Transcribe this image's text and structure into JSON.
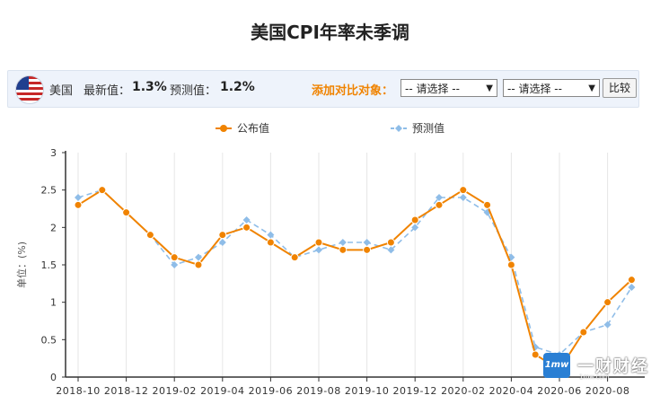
{
  "page": {
    "title": "美国CPI年率未季调"
  },
  "info_bar": {
    "flag_icon": "us-flag-icon",
    "country": "美国",
    "latest_label": "最新值：",
    "latest_value": "1.3%",
    "forecast_label": "预测值：",
    "forecast_value": "1.2%",
    "compare_label": "添加对比对象：",
    "select1": "-- 请选择 --",
    "select2": "-- 请选择 --",
    "compare_button": "比较"
  },
  "watermark": {
    "logo_text": "1mw",
    "text": "一财财经",
    "url": "1mw.com"
  },
  "chart_data": {
    "type": "line",
    "title": "",
    "xlabel": "",
    "ylabel": "单位：(%)",
    "ylim": [
      0,
      3
    ],
    "yticks": [
      "0",
      "0.5",
      "1",
      "1.5",
      "2",
      "2.5",
      "3"
    ],
    "x": [
      "2018-10",
      "2018-11",
      "2018-12",
      "2019-01",
      "2019-02",
      "2019-03",
      "2019-04",
      "2019-05",
      "2019-06",
      "2019-07",
      "2019-08",
      "2019-09",
      "2019-10",
      "2019-11",
      "2019-12",
      "2020-01",
      "2020-02",
      "2020-03",
      "2020-04",
      "2020-05",
      "2020-06",
      "2020-07",
      "2020-08",
      "2020-09"
    ],
    "xtick_labels": [
      "2018-10",
      "2018-12",
      "2019-02",
      "2019-04",
      "2019-06",
      "2019-08",
      "2019-10",
      "2019-12",
      "2020-02",
      "2020-04",
      "2020-06",
      "2020-08"
    ],
    "xtick_indices": [
      0,
      2,
      4,
      6,
      8,
      10,
      12,
      14,
      16,
      18,
      20,
      22
    ],
    "legend_position": "top-center",
    "grid": "vertical",
    "series": [
      {
        "name": "公布值",
        "color": "#f08300",
        "dashed": false,
        "values": [
          2.3,
          2.5,
          2.2,
          1.9,
          1.6,
          1.5,
          1.9,
          2.0,
          1.8,
          1.6,
          1.8,
          1.7,
          1.7,
          1.8,
          2.1,
          2.3,
          2.5,
          2.3,
          1.5,
          0.3,
          0.1,
          0.6,
          1.0,
          1.3
        ]
      },
      {
        "name": "预测值",
        "color": "#8fbde8",
        "dashed": true,
        "values": [
          2.4,
          2.5,
          2.2,
          1.9,
          1.5,
          1.6,
          1.8,
          2.1,
          1.9,
          1.6,
          1.7,
          1.8,
          1.8,
          1.7,
          2.0,
          2.4,
          2.4,
          2.2,
          1.6,
          0.4,
          0.3,
          0.6,
          0.7,
          1.2
        ]
      }
    ]
  }
}
